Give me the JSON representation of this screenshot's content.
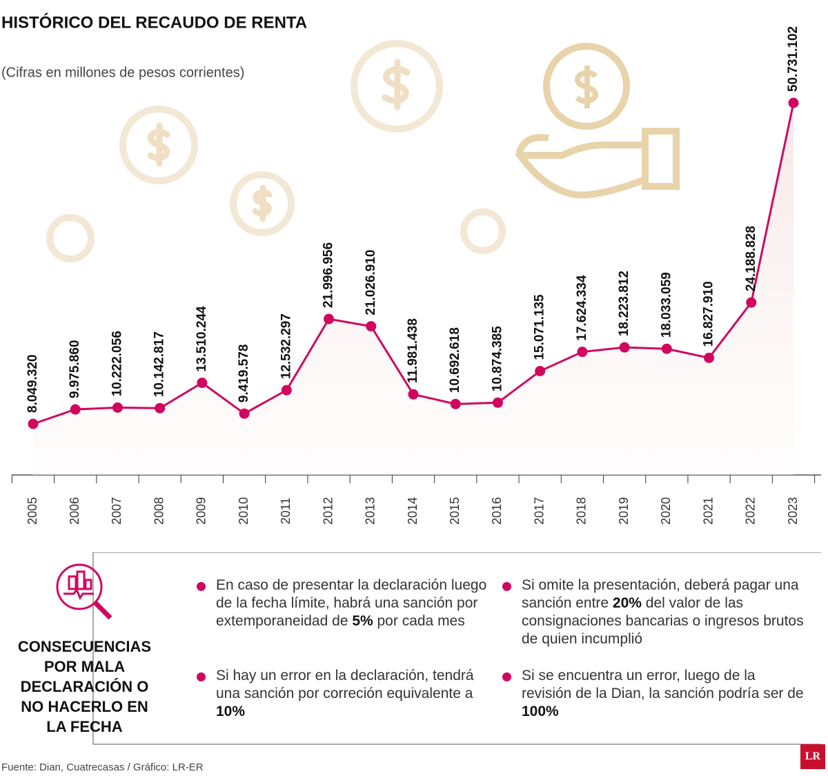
{
  "chart_data": {
    "type": "line",
    "title": "HISTÓRICO DEL RECAUDO DE RENTA",
    "subtitle": "(Cifras en millones de pesos corrientes)",
    "categories": [
      "2005",
      "2006",
      "2007",
      "2008",
      "2009",
      "2010",
      "2011",
      "2012",
      "2013",
      "2014",
      "2015",
      "2016",
      "2017",
      "2018",
      "2019",
      "2020",
      "2021",
      "2022",
      "2023"
    ],
    "values": [
      8049320,
      9975860,
      10222056,
      10142817,
      13510244,
      9419578,
      12532297,
      21996956,
      21026910,
      11981438,
      10692618,
      10874385,
      15071135,
      17624334,
      18223812,
      18033059,
      16827910,
      24188828,
      50731102
    ],
    "value_labels": [
      "8.049.320",
      "9.975.860",
      "10.222.056",
      "10.142.817",
      "13.510.244",
      "9.419.578",
      "12.532.297",
      "21.996.956",
      "21.026.910",
      "11.981.438",
      "10.692.618",
      "10.874.385",
      "15.071.135",
      "17.624.334",
      "18.223.812",
      "18.033.059",
      "16.827.910",
      "24.188.828",
      "50.731.102"
    ],
    "color": "#d1065f"
  },
  "panel": {
    "heading": "CONSECUENCIAS POR MALA DECLARACIÓN O NO HACERLO EN LA FECHA",
    "bullets": [
      [
        "En caso de presentar la declaración luego de la fecha límite, habrá una sanción por extemporaneidad de ",
        "5%",
        " por cada mes"
      ],
      [
        "Si omite la presentación, deberá pagar una sanción entre ",
        "20%",
        " del valor de las consignaciones bancarias o ingresos brutos de quien incumplió"
      ],
      [
        "Si hay un error en la declaración, tendrá una sanción por correción equivalente a ",
        "10%"
      ],
      [
        "Si se encuentra un error, luego de la revisión de la Dian, la sanción podría ser de ",
        "100%"
      ]
    ]
  },
  "footer": {
    "source": "Fuente: Dian, Cuatrecasas / Gráfico: LR-ER",
    "logo": "LR"
  }
}
